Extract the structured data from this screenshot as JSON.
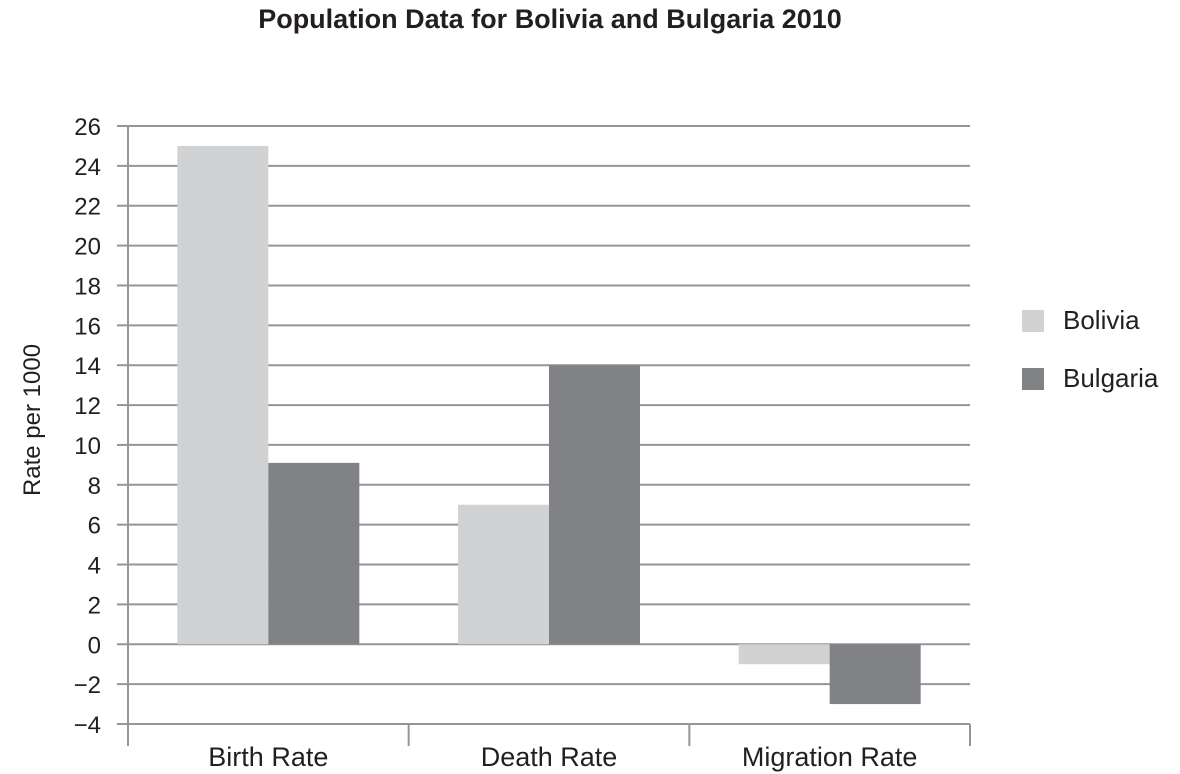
{
  "chart_data": {
    "type": "bar",
    "title": "Population Data for Bolivia and Bulgaria 2010",
    "xlabel": "",
    "ylabel": "Rate per 1000",
    "categories": [
      "Birth Rate",
      "Death Rate",
      "Migration Rate"
    ],
    "series": [
      {
        "name": "Bolivia",
        "values": [
          25,
          7,
          -1
        ],
        "color": "#d1d2d4"
      },
      {
        "name": "Bulgaria",
        "values": [
          9.1,
          14,
          -3
        ],
        "color": "#808285"
      }
    ],
    "ylim": [
      -4,
      26
    ],
    "yticks": [
      "26",
      "24",
      "22",
      "20",
      "18",
      "16",
      "14",
      "12",
      "10",
      "8",
      "6",
      "4",
      "2",
      "0",
      "−2",
      "−4"
    ],
    "grid": true,
    "legend_position": "right",
    "colors": {
      "gridline": "#939598",
      "text": "#231f20"
    }
  }
}
